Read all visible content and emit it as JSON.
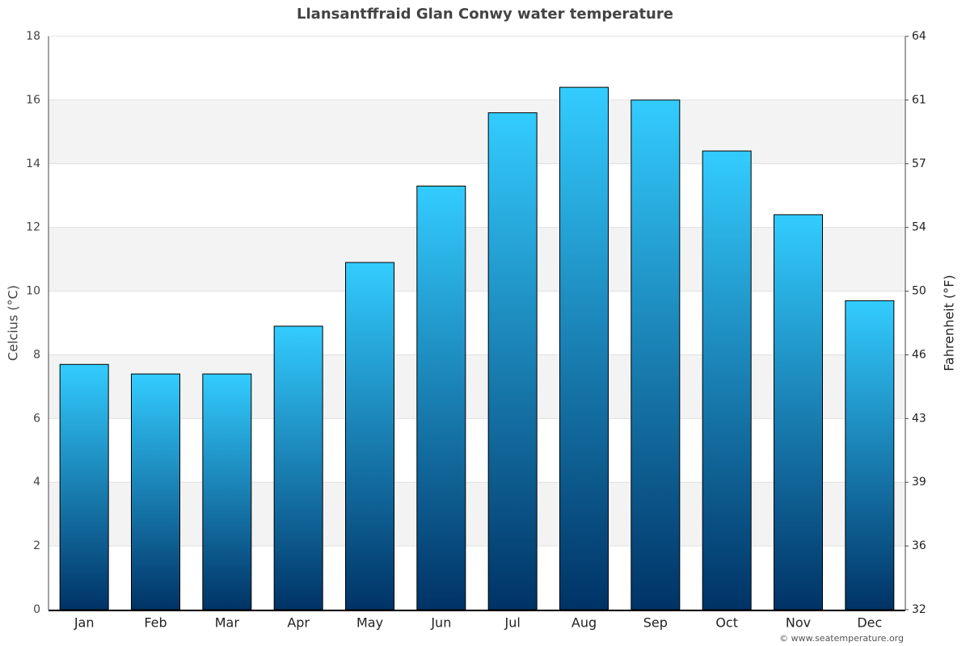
{
  "chart_data": {
    "type": "bar",
    "title": "Llansantffraid Glan Conwy water temperature",
    "y_label": "Celcius (°C)",
    "y2_label": "Fahrenheit (°F)",
    "source": "© www.seatemperature.org",
    "categories": [
      "Jan",
      "Feb",
      "Mar",
      "Apr",
      "May",
      "Jun",
      "Jul",
      "Aug",
      "Sep",
      "Oct",
      "Nov",
      "Dec"
    ],
    "values": [
      7.7,
      7.4,
      7.4,
      8.9,
      10.9,
      13.3,
      15.6,
      16.4,
      16.0,
      14.4,
      12.4,
      9.7
    ],
    "color": [
      "#33ccff",
      "#003366"
    ],
    "ylim": [
      0,
      18
    ],
    "yticks": [
      0,
      2,
      4,
      6,
      8,
      10,
      12,
      14,
      16,
      18
    ],
    "y2lim": [
      32,
      64.4
    ],
    "y2ticks": [
      32,
      {
        "value": 35.6,
        "label": "36"
      },
      {
        "value": 39.2,
        "label": "39"
      },
      {
        "value": 42.8,
        "label": "43"
      },
      {
        "value": 46.4,
        "label": "46"
      },
      50,
      {
        "value": 53.6,
        "label": "54"
      },
      {
        "value": 57.2,
        "label": "57"
      },
      {
        "value": 60.8,
        "label": "61"
      },
      {
        "value": 64.4,
        "label": "64"
      }
    ],
    "grid": true
  }
}
